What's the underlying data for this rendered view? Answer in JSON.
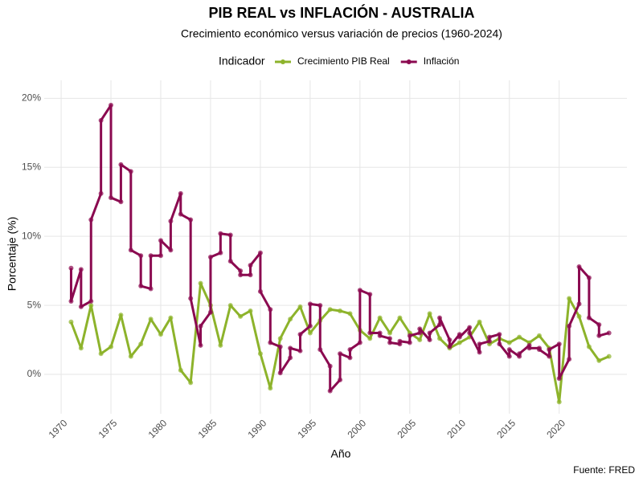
{
  "chart_data": {
    "type": "line",
    "title": "PIB REAL vs INFLACIÓN - AUSTRALIA",
    "subtitle": "Crecimiento económico versus variación de precios (1960-2024)",
    "x_label": "Año",
    "y_label": "Porcentaje (%)",
    "legend_title": "Indicador",
    "caption": "Fuente: FRED",
    "legend": "top",
    "grid": true,
    "xlim": [
      1968.3,
      2026.8
    ],
    "ylim": [
      -2.85,
      21.3
    ],
    "xticks": [
      1970,
      1975,
      1980,
      1985,
      1990,
      1995,
      2000,
      2005,
      2010,
      2015,
      2020
    ],
    "yticks": [
      {
        "value": 0,
        "label": "0%"
      },
      {
        "value": 5,
        "label": "5%"
      },
      {
        "value": 10,
        "label": "10%"
      },
      {
        "value": 15,
        "label": "15%"
      },
      {
        "value": 20,
        "label": "20%"
      }
    ],
    "series": [
      {
        "name": "Crecimiento PIB Real",
        "color": "#8db32b",
        "x": [
          1971,
          1972,
          1973,
          1974,
          1975,
          1976,
          1977,
          1978,
          1979,
          1980,
          1981,
          1982,
          1983,
          1984,
          1985,
          1986,
          1987,
          1988,
          1989,
          1990,
          1991,
          1992,
          1993,
          1994,
          1995,
          1996,
          1997,
          1998,
          1999,
          2000,
          2001,
          2002,
          2003,
          2004,
          2005,
          2006,
          2007,
          2008,
          2009,
          2010,
          2011,
          2012,
          2013,
          2014,
          2015,
          2016,
          2017,
          2018,
          2019,
          2020,
          2021,
          2022,
          2023,
          2024,
          2025
        ],
        "values": [
          3.8,
          1.9,
          5.0,
          1.5,
          2.0,
          4.3,
          1.3,
          2.2,
          4.0,
          2.9,
          4.1,
          0.3,
          -0.6,
          6.6,
          5.0,
          2.1,
          5.0,
          4.2,
          4.6,
          1.5,
          -1.0,
          2.6,
          4.0,
          4.9,
          3.0,
          3.9,
          4.7,
          4.6,
          4.4,
          3.2,
          2.6,
          4.1,
          3.0,
          4.1,
          3.0,
          2.5,
          4.4,
          2.6,
          1.9,
          2.3,
          2.7,
          3.8,
          2.2,
          2.6,
          2.3,
          2.7,
          2.3,
          2.8,
          1.9,
          -2.0,
          5.5,
          4.2,
          2.0,
          1.0,
          1.3
        ]
      },
      {
        "name": "Inflación",
        "color": "#8b0a50",
        "x": [
          1971,
          1971,
          1972,
          1972,
          1973,
          1973,
          1974,
          1974,
          1975,
          1975,
          1976,
          1976,
          1977,
          1977,
          1978,
          1978,
          1979,
          1979,
          1980,
          1980,
          1981,
          1981,
          1982,
          1982,
          1983,
          1983,
          1984,
          1984,
          1985,
          1985,
          1986,
          1986,
          1987,
          1987,
          1988,
          1988,
          1989,
          1989,
          1990,
          1990,
          1991,
          1991,
          1992,
          1992,
          1993,
          1993,
          1994,
          1994,
          1995,
          1995,
          1996,
          1996,
          1997,
          1997,
          1998,
          1998,
          1999,
          1999,
          2000,
          2000,
          2001,
          2001,
          2002,
          2002,
          2003,
          2003,
          2004,
          2004,
          2005,
          2005,
          2006,
          2006,
          2007,
          2007,
          2008,
          2008,
          2009,
          2009,
          2010,
          2010,
          2011,
          2011,
          2012,
          2012,
          2013,
          2013,
          2014,
          2014,
          2015,
          2015,
          2016,
          2016,
          2017,
          2017,
          2018,
          2018,
          2019,
          2019,
          2020,
          2020,
          2021,
          2021,
          2022,
          2022,
          2023,
          2023,
          2024,
          2024,
          2025
        ],
        "values": [
          7.7,
          5.3,
          7.6,
          4.9,
          5.3,
          11.2,
          13.1,
          18.4,
          19.5,
          12.8,
          12.5,
          15.2,
          14.7,
          9.0,
          8.6,
          6.4,
          6.2,
          8.6,
          8.6,
          9.7,
          9.0,
          11.1,
          13.1,
          11.6,
          11.2,
          5.5,
          2.1,
          3.5,
          4.5,
          8.5,
          8.8,
          10.2,
          10.1,
          8.2,
          7.5,
          7.2,
          7.2,
          7.9,
          8.8,
          6.0,
          4.7,
          2.3,
          2.0,
          0.1,
          1.2,
          1.9,
          1.7,
          2.9,
          3.5,
          5.1,
          5.0,
          1.8,
          0.6,
          -1.2,
          -0.4,
          1.5,
          1.2,
          1.8,
          2.3,
          6.1,
          5.8,
          3.0,
          3.0,
          2.8,
          2.6,
          2.3,
          2.2,
          2.4,
          2.3,
          2.8,
          3.0,
          3.3,
          2.5,
          3.0,
          3.6,
          4.1,
          2.5,
          2.0,
          2.9,
          2.7,
          3.4,
          3.0,
          1.6,
          2.2,
          2.4,
          2.7,
          2.9,
          2.2,
          1.3,
          1.8,
          1.3,
          1.5,
          2.1,
          1.9,
          1.9,
          1.8,
          1.3,
          1.8,
          2.2,
          -0.3,
          1.1,
          3.5,
          5.1,
          7.8,
          7.0,
          4.1,
          3.6,
          2.8,
          3.0
        ]
      }
    ]
  }
}
